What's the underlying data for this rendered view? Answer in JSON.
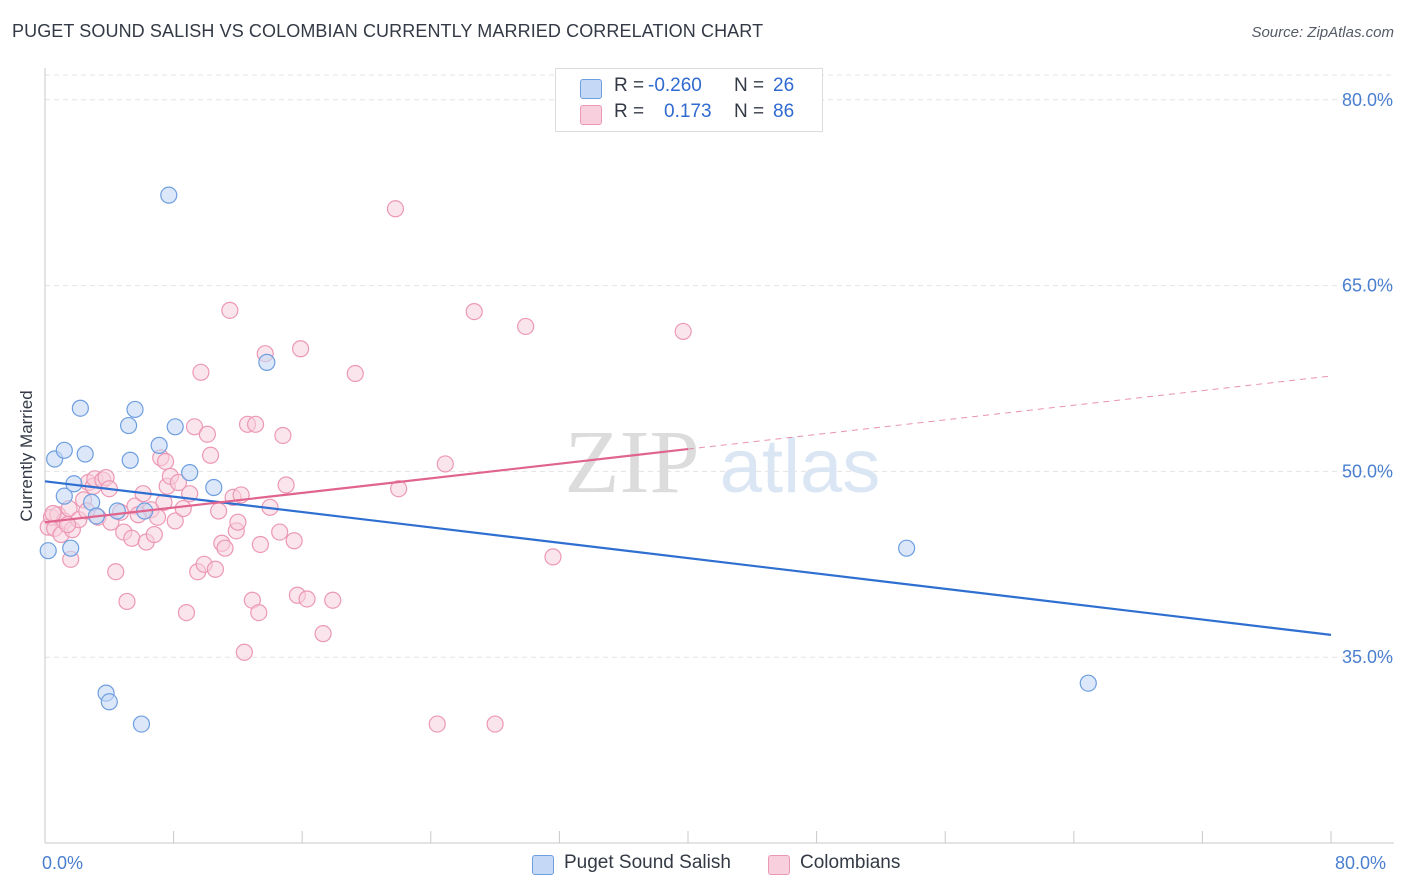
{
  "title": "PUGET SOUND SALISH VS COLOMBIAN CURRENTLY MARRIED CORRELATION CHART",
  "source": "Source: ZipAtlas.com",
  "watermark": {
    "part1": "ZIP",
    "part2": "atlas"
  },
  "chart_data": {
    "type": "scatter",
    "xlabel": "",
    "ylabel": "Currently Married",
    "xlim": [
      0,
      80
    ],
    "ylim": [
      20,
      82
    ],
    "x_tick_labels": {
      "min": "0.0%",
      "max": "80.0%"
    },
    "y_ticks": [
      35,
      50,
      65,
      80
    ],
    "y_tick_labels": [
      "35.0%",
      "50.0%",
      "65.0%",
      "80.0%"
    ],
    "grid": true,
    "legend_placement": "top-center",
    "colors": {
      "puget_fill": "#c5d8f5",
      "puget_stroke": "#6e9ee0",
      "puget_line": "#2e6fd1",
      "colombian_fill": "#f8cfdc",
      "colombian_stroke": "#ec98b4",
      "colombian_line": "#e0648d"
    },
    "legend": {
      "rows": [
        {
          "r_label": "R =",
          "r_value": "-0.260",
          "n_label": "N =",
          "n_value": "26"
        },
        {
          "r_label": "R =",
          "r_value": "0.173",
          "n_label": "N =",
          "n_value": "86"
        }
      ]
    },
    "series": [
      {
        "name": "Puget Sound Salish",
        "trend": {
          "x": [
            0,
            80
          ],
          "y": [
            49.2,
            36.8
          ]
        },
        "points": [
          [
            0.2,
            43.6
          ],
          [
            0.6,
            51.0
          ],
          [
            1.2,
            48.0
          ],
          [
            1.2,
            51.7
          ],
          [
            1.6,
            43.8
          ],
          [
            1.8,
            49.0
          ],
          [
            2.2,
            55.1
          ],
          [
            2.5,
            51.4
          ],
          [
            2.9,
            47.5
          ],
          [
            3.2,
            46.4
          ],
          [
            3.8,
            32.1
          ],
          [
            4.0,
            31.4
          ],
          [
            4.5,
            46.8
          ],
          [
            5.2,
            53.7
          ],
          [
            5.3,
            50.9
          ],
          [
            5.6,
            55.0
          ],
          [
            6.0,
            29.6
          ],
          [
            6.2,
            46.8
          ],
          [
            7.1,
            52.1
          ],
          [
            7.7,
            72.3
          ],
          [
            8.1,
            53.6
          ],
          [
            9.0,
            49.9
          ],
          [
            10.5,
            48.7
          ],
          [
            13.8,
            58.8
          ],
          [
            53.6,
            43.8
          ],
          [
            64.9,
            32.9
          ]
        ]
      },
      {
        "name": "Colombians",
        "trend": {
          "x": [
            0,
            40
          ],
          "y": [
            45.9,
            51.8
          ]
        },
        "dashed_trend": {
          "x": [
            40,
            80
          ],
          "y": [
            51.8,
            57.7
          ]
        },
        "points": [
          [
            0.2,
            45.5
          ],
          [
            0.4,
            46.3
          ],
          [
            0.6,
            45.4
          ],
          [
            0.8,
            46.5
          ],
          [
            1.0,
            44.9
          ],
          [
            1.2,
            46.0
          ],
          [
            1.5,
            47.0
          ],
          [
            1.6,
            42.9
          ],
          [
            1.7,
            45.3
          ],
          [
            2.1,
            46.1
          ],
          [
            2.4,
            47.7
          ],
          [
            2.7,
            49.1
          ],
          [
            3.0,
            48.8
          ],
          [
            3.1,
            49.4
          ],
          [
            3.3,
            46.3
          ],
          [
            3.6,
            49.3
          ],
          [
            3.8,
            49.5
          ],
          [
            4.0,
            48.6
          ],
          [
            4.1,
            45.9
          ],
          [
            4.4,
            41.9
          ],
          [
            4.7,
            46.7
          ],
          [
            4.9,
            45.1
          ],
          [
            5.1,
            39.5
          ],
          [
            5.4,
            44.6
          ],
          [
            5.6,
            47.2
          ],
          [
            5.8,
            46.5
          ],
          [
            6.1,
            48.2
          ],
          [
            6.3,
            44.3
          ],
          [
            6.6,
            46.9
          ],
          [
            6.8,
            44.9
          ],
          [
            7.0,
            46.3
          ],
          [
            7.2,
            51.1
          ],
          [
            7.5,
            50.8
          ],
          [
            7.6,
            48.8
          ],
          [
            7.8,
            49.6
          ],
          [
            8.1,
            46.0
          ],
          [
            8.3,
            49.1
          ],
          [
            8.6,
            47.0
          ],
          [
            8.8,
            38.6
          ],
          [
            9.0,
            48.2
          ],
          [
            9.3,
            53.6
          ],
          [
            9.5,
            41.9
          ],
          [
            9.7,
            58.0
          ],
          [
            9.9,
            42.5
          ],
          [
            10.1,
            53.0
          ],
          [
            10.3,
            51.3
          ],
          [
            10.6,
            42.1
          ],
          [
            10.8,
            46.8
          ],
          [
            11.0,
            44.2
          ],
          [
            11.2,
            43.8
          ],
          [
            11.5,
            63.0
          ],
          [
            11.7,
            47.9
          ],
          [
            11.9,
            45.2
          ],
          [
            12.2,
            48.1
          ],
          [
            12.4,
            35.4
          ],
          [
            12.6,
            53.8
          ],
          [
            12.9,
            39.6
          ],
          [
            13.1,
            53.8
          ],
          [
            13.3,
            38.6
          ],
          [
            13.4,
            44.1
          ],
          [
            13.7,
            59.5
          ],
          [
            14.0,
            47.1
          ],
          [
            14.6,
            45.1
          ],
          [
            14.8,
            52.9
          ],
          [
            15.0,
            48.9
          ],
          [
            15.5,
            44.4
          ],
          [
            15.7,
            40.0
          ],
          [
            15.9,
            59.9
          ],
          [
            16.3,
            39.7
          ],
          [
            17.3,
            36.9
          ],
          [
            17.9,
            39.6
          ],
          [
            19.3,
            57.9
          ],
          [
            21.8,
            71.2
          ],
          [
            22.0,
            48.6
          ],
          [
            24.4,
            29.6
          ],
          [
            24.9,
            50.6
          ],
          [
            26.7,
            62.9
          ],
          [
            28.0,
            29.6
          ],
          [
            29.9,
            61.7
          ],
          [
            31.6,
            43.1
          ],
          [
            39.7,
            61.3
          ],
          [
            0.5,
            46.6
          ],
          [
            1.4,
            45.7
          ],
          [
            2.6,
            46.8
          ],
          [
            7.4,
            47.5
          ],
          [
            12.0,
            45.9
          ]
        ]
      }
    ]
  }
}
